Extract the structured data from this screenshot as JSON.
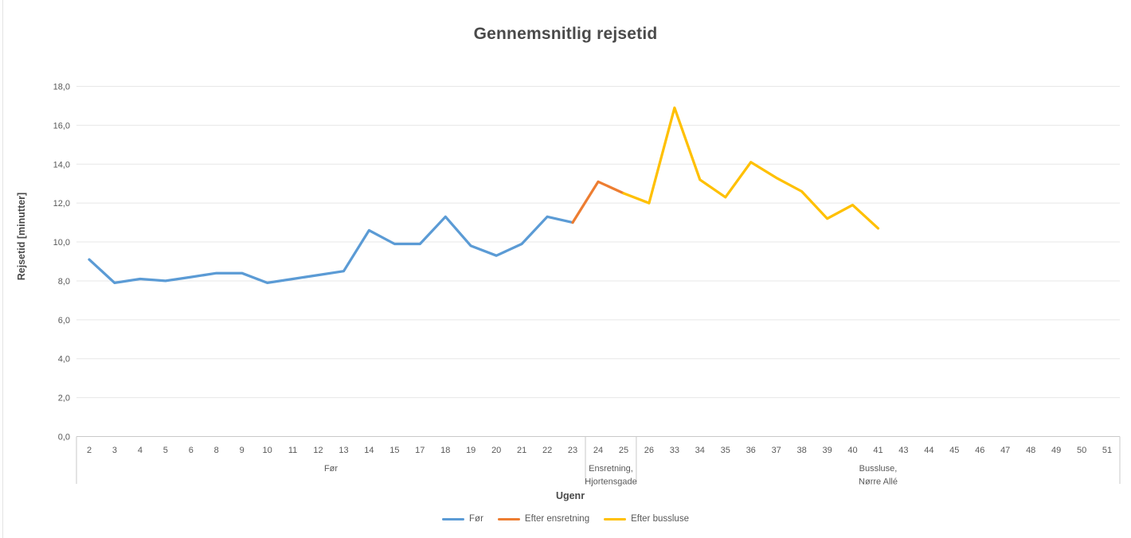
{
  "colors": {
    "gridline": "#e7e7e7",
    "axis_line": "#c9c9c9",
    "tick_text": "#595959",
    "title_text": "#4a4a4a",
    "series_before": "#5B9BD5",
    "series_oneway": "#ED7D31",
    "series_buslock": "#FFC000"
  },
  "chart_data": {
    "type": "line",
    "title": "Gennemsnitlig rejsetid",
    "xlabel": "Ugenr",
    "ylabel": "Rejsetid [minutter]",
    "ylim": [
      0,
      18
    ],
    "y_tick_step": 2,
    "y_tick_labels": [
      "0,0",
      "2,0",
      "4,0",
      "6,0",
      "8,0",
      "10,0",
      "12,0",
      "14,0",
      "16,0",
      "18,0"
    ],
    "grid": true,
    "legend_position": "bottom",
    "categories": [
      "2",
      "3",
      "4",
      "5",
      "6",
      "8",
      "9",
      "10",
      "11",
      "12",
      "13",
      "14",
      "15",
      "17",
      "18",
      "19",
      "20",
      "21",
      "22",
      "23",
      "24",
      "25",
      "26",
      "33",
      "34",
      "35",
      "36",
      "37",
      "38",
      "39",
      "40",
      "41",
      "43",
      "44",
      "45",
      "46",
      "47",
      "48",
      "49",
      "50",
      "51"
    ],
    "category_groups": [
      {
        "label_lines": [
          "Før"
        ],
        "start": 0,
        "end": 19
      },
      {
        "label_lines": [
          "Ensretning,",
          "Hjortensgade"
        ],
        "start": 20,
        "end": 21
      },
      {
        "label_lines": [
          "Bussluse,",
          "Nørre Allé"
        ],
        "start": 22,
        "end": 40
      }
    ],
    "series": [
      {
        "name": "Før",
        "color": "#5B9BD5",
        "points": [
          [
            "2",
            9.1
          ],
          [
            "3",
            7.9
          ],
          [
            "4",
            8.1
          ],
          [
            "5",
            8.0
          ],
          [
            "6",
            8.2
          ],
          [
            "8",
            8.4
          ],
          [
            "9",
            8.4
          ],
          [
            "10",
            7.9
          ],
          [
            "11",
            8.1
          ],
          [
            "12",
            8.3
          ],
          [
            "13",
            8.5
          ],
          [
            "14",
            10.6
          ],
          [
            "15",
            9.9
          ],
          [
            "17",
            9.9
          ],
          [
            "18",
            11.3
          ],
          [
            "19",
            9.8
          ],
          [
            "20",
            9.3
          ],
          [
            "21",
            9.9
          ],
          [
            "22",
            11.3
          ],
          [
            "23",
            11.0
          ]
        ]
      },
      {
        "name": "Efter ensretning",
        "color": "#ED7D31",
        "points": [
          [
            "23",
            11.0
          ],
          [
            "24",
            13.1
          ],
          [
            "25",
            12.5
          ]
        ]
      },
      {
        "name": "Efter bussluse",
        "color": "#FFC000",
        "points": [
          [
            "25",
            12.5
          ],
          [
            "26",
            12.0
          ],
          [
            "33",
            16.9
          ],
          [
            "34",
            13.2
          ],
          [
            "35",
            12.3
          ],
          [
            "36",
            14.1
          ],
          [
            "37",
            13.3
          ],
          [
            "38",
            12.6
          ],
          [
            "39",
            11.2
          ],
          [
            "40",
            11.9
          ],
          [
            "41",
            10.7
          ]
        ]
      }
    ]
  }
}
